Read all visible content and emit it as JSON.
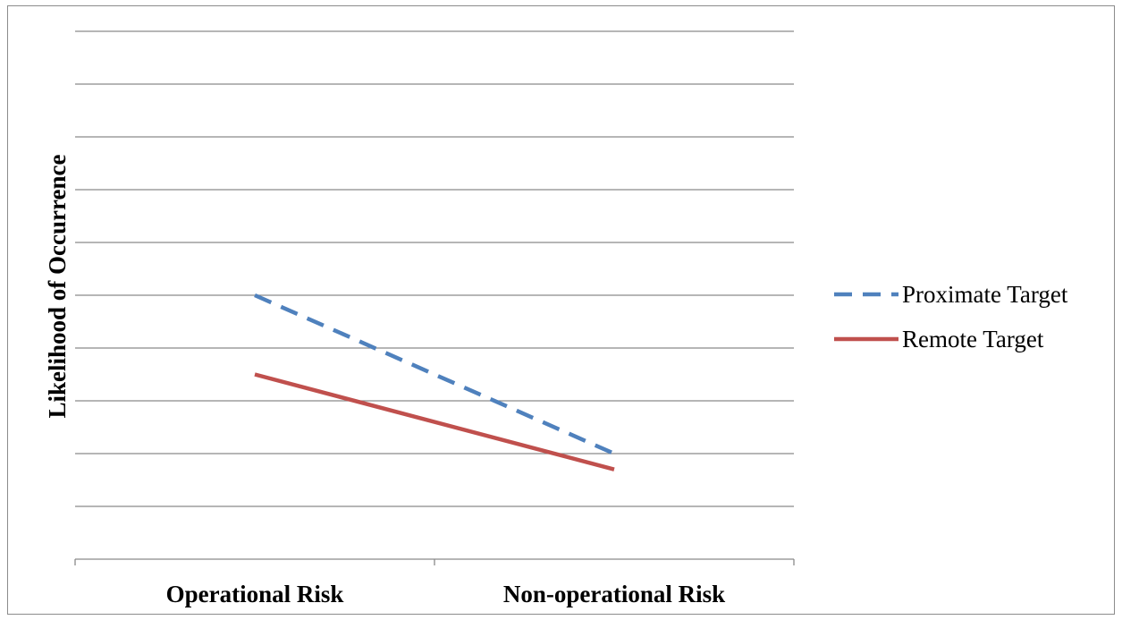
{
  "chart_data": {
    "type": "line",
    "title": "",
    "xlabel": "",
    "ylabel": "Likelihood of Occurrence",
    "categories": [
      "Operational Risk",
      "Non-operational Risk"
    ],
    "series": [
      {
        "name": "Proximate Target",
        "values": [
          5,
          2
        ],
        "color": "#4f81bd",
        "line_style": "dashed"
      },
      {
        "name": "Remote Target",
        "values": [
          3.5,
          1.7
        ],
        "color": "#c0504d",
        "line_style": "solid"
      }
    ],
    "ylim": [
      0,
      10
    ],
    "y_tick_step": 1,
    "y_tick_labels_shown": false,
    "grid": true,
    "legend_position": "right"
  }
}
